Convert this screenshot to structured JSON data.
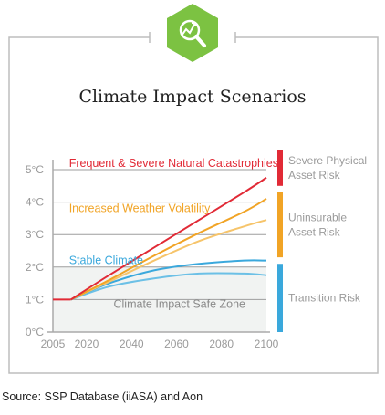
{
  "chart_data": {
    "type": "line",
    "title": "Climate Impact Scenarios",
    "x_ticks": [
      "2005",
      "2020",
      "2040",
      "2060",
      "2080",
      "2100"
    ],
    "y_ticks": [
      "0°C",
      "1°C",
      "2°C",
      "3°C",
      "4°C",
      "5°C"
    ],
    "xlim": [
      2005,
      2100
    ],
    "ylim": [
      0,
      5
    ],
    "baseline": {
      "x": [
        2005,
        2013
      ],
      "y": [
        1.0,
        1.0
      ]
    },
    "series": [
      {
        "label_ref": "annotations.0",
        "color": "#e12a36",
        "x": [
          2013,
          2030,
          2050,
          2070,
          2090,
          2100
        ],
        "y": [
          1.0,
          1.75,
          2.6,
          3.45,
          4.3,
          4.75
        ]
      },
      {
        "label_ref": "annotations.1",
        "color": "#f1a426",
        "x": [
          2013,
          2030,
          2050,
          2070,
          2090,
          2100
        ],
        "y": [
          1.0,
          1.6,
          2.35,
          3.05,
          3.7,
          4.1
        ]
      },
      {
        "label_ref": "annotations.1",
        "color": "#f6c46a",
        "x": [
          2013,
          2030,
          2050,
          2070,
          2090,
          2100
        ],
        "y": [
          1.0,
          1.55,
          2.2,
          2.8,
          3.25,
          3.45
        ]
      },
      {
        "label_ref": "annotations.2",
        "color": "#3aa8dc",
        "x": [
          2013,
          2030,
          2050,
          2070,
          2090,
          2100
        ],
        "y": [
          1.0,
          1.5,
          1.9,
          2.1,
          2.2,
          2.2
        ]
      },
      {
        "label_ref": "annotations.2",
        "color": "#6cc0e6",
        "x": [
          2013,
          2030,
          2050,
          2070,
          2090,
          2100
        ],
        "y": [
          1.0,
          1.4,
          1.65,
          1.8,
          1.8,
          1.75
        ]
      }
    ],
    "annotations": [
      {
        "text": "Frequent & Severe Natural Catastrophies",
        "color": "#e12a36",
        "x": 2013,
        "y": 5.2
      },
      {
        "text": "Increased Weather Volatility",
        "color": "#f1a426",
        "x": 2013,
        "y": 3.8
      },
      {
        "text": "Stable Climate",
        "color": "#3aa8dc",
        "x": 2013,
        "y": 2.2
      },
      {
        "text": "Climate Impact Safe Zone",
        "color": "#8a8a8a",
        "x": 2032,
        "y": 0.85
      }
    ],
    "safe_zone": {
      "y_range": [
        0,
        2
      ]
    },
    "risk_bands": [
      {
        "lines": [
          "Severe Physical",
          "Asset Risk"
        ],
        "color": "#e12a36",
        "y_range": [
          4.5,
          5.6
        ]
      },
      {
        "lines": [
          "Uninsurable",
          "Asset Risk"
        ],
        "color": "#f1a426",
        "y_range": [
          2.3,
          4.3
        ]
      },
      {
        "lines": [
          "Transition Risk"
        ],
        "color": "#3aa8dc",
        "y_range": [
          0,
          2.1
        ]
      }
    ],
    "grid": true
  },
  "source": "Source: SSP Database (iiASA) and Aon",
  "colors": {
    "accent_green": "#7cc242",
    "axis_gray": "#aaaaaa",
    "frame_gray": "#bdbdbd"
  },
  "icon": "analytics-magnifier-icon"
}
